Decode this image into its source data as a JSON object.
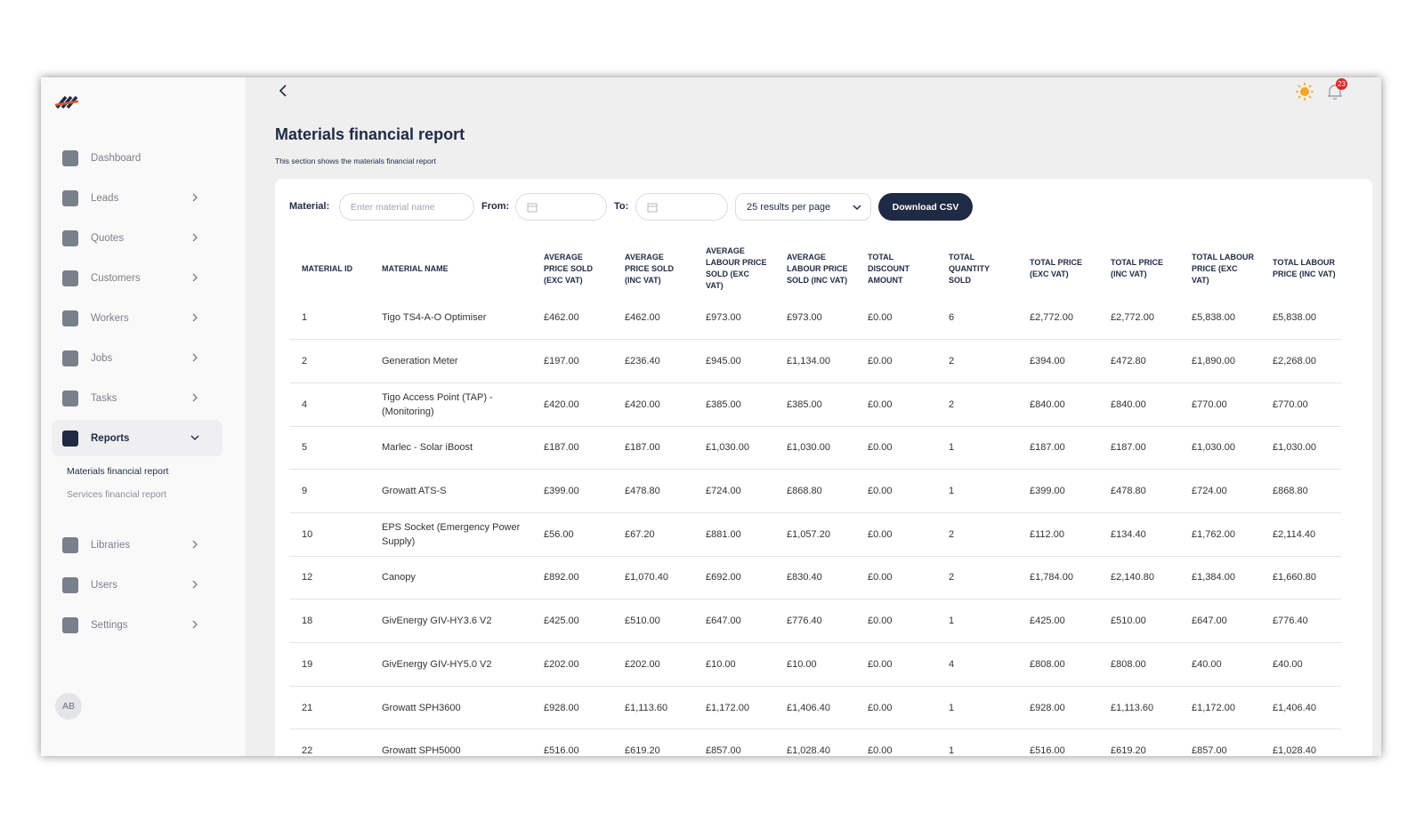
{
  "sidebar": {
    "nav": [
      {
        "label": "Dashboard"
      },
      {
        "label": "Leads"
      },
      {
        "label": "Quotes"
      },
      {
        "label": "Customers"
      },
      {
        "label": "Workers"
      },
      {
        "label": "Jobs"
      },
      {
        "label": "Tasks"
      },
      {
        "label": "Reports",
        "children": [
          "Materials financial report",
          "Services financial report"
        ]
      },
      {
        "label": "Libraries"
      },
      {
        "label": "Users"
      },
      {
        "label": "Settings"
      }
    ],
    "avatar": "AB"
  },
  "header": {
    "notifications": 23
  },
  "page": {
    "title": "Materials financial report",
    "subtitle": "This section shows the materials financial report"
  },
  "filters": {
    "material_label": "Material:",
    "material_placeholder": "Enter material name",
    "from_label": "From:",
    "to_label": "To:",
    "per_page": "25 results per page",
    "download": "Download CSV"
  },
  "table": {
    "headers": [
      "MATERIAL ID",
      "MATERIAL NAME",
      "AVERAGE PRICE SOLD (EXC VAT)",
      "AVERAGE PRICE SOLD (INC VAT)",
      "AVERAGE LABOUR PRICE SOLD (EXC VAT)",
      "AVERAGE LABOUR PRICE SOLD (INC VAT)",
      "TOTAL DISCOUNT AMOUNT",
      "TOTAL QUANTITY SOLD",
      "TOTAL PRICE (EXC VAT)",
      "TOTAL PRICE (INC VAT)",
      "TOTAL LABOUR PRICE (EXC VAT)",
      "TOTAL LABOUR PRICE (INC VAT)"
    ],
    "rows": [
      [
        1,
        "Tigo TS4-A-O Optimiser",
        "£462.00",
        "£462.00",
        "£973.00",
        "£973.00",
        "£0.00",
        6,
        "£2,772.00",
        "£2,772.00",
        "£5,838.00",
        "£5,838.00"
      ],
      [
        2,
        "Generation Meter",
        "£197.00",
        "£236.40",
        "£945.00",
        "£1,134.00",
        "£0.00",
        2,
        "£394.00",
        "£472.80",
        "£1,890.00",
        "£2,268.00"
      ],
      [
        4,
        "Tigo Access Point (TAP) - (Monitoring)",
        "£420.00",
        "£420.00",
        "£385.00",
        "£385.00",
        "£0.00",
        2,
        "£840.00",
        "£840.00",
        "£770.00",
        "£770.00"
      ],
      [
        5,
        "Marlec - Solar iBoost",
        "£187.00",
        "£187.00",
        "£1,030.00",
        "£1,030.00",
        "£0.00",
        1,
        "£187.00",
        "£187.00",
        "£1,030.00",
        "£1,030.00"
      ],
      [
        9,
        "Growatt ATS-S",
        "£399.00",
        "£478.80",
        "£724.00",
        "£868.80",
        "£0.00",
        1,
        "£399.00",
        "£478.80",
        "£724.00",
        "£868.80"
      ],
      [
        10,
        "EPS Socket (Emergency Power Supply)",
        "£56.00",
        "£67.20",
        "£881.00",
        "£1,057.20",
        "£0.00",
        2,
        "£112.00",
        "£134.40",
        "£1,762.00",
        "£2,114.40"
      ],
      [
        12,
        "Canopy",
        "£892.00",
        "£1,070.40",
        "£692.00",
        "£830.40",
        "£0.00",
        2,
        "£1,784.00",
        "£2,140.80",
        "£1,384.00",
        "£1,660.80"
      ],
      [
        18,
        "GivEnergy GIV-HY3.6 V2",
        "£425.00",
        "£510.00",
        "£647.00",
        "£776.40",
        "£0.00",
        1,
        "£425.00",
        "£510.00",
        "£647.00",
        "£776.40"
      ],
      [
        19,
        "GivEnergy GIV-HY5.0 V2",
        "£202.00",
        "£202.00",
        "£10.00",
        "£10.00",
        "£0.00",
        4,
        "£808.00",
        "£808.00",
        "£40.00",
        "£40.00"
      ],
      [
        21,
        "Growatt SPH3600",
        "£928.00",
        "£1,113.60",
        "£1,172.00",
        "£1,406.40",
        "£0.00",
        1,
        "£928.00",
        "£1,113.60",
        "£1,172.00",
        "£1,406.40"
      ],
      [
        22,
        "Growatt SPH5000",
        "£516.00",
        "£619.20",
        "£857.00",
        "£1,028.40",
        "£0.00",
        1,
        "£516.00",
        "£619.20",
        "£857.00",
        "£1,028.40"
      ]
    ]
  }
}
